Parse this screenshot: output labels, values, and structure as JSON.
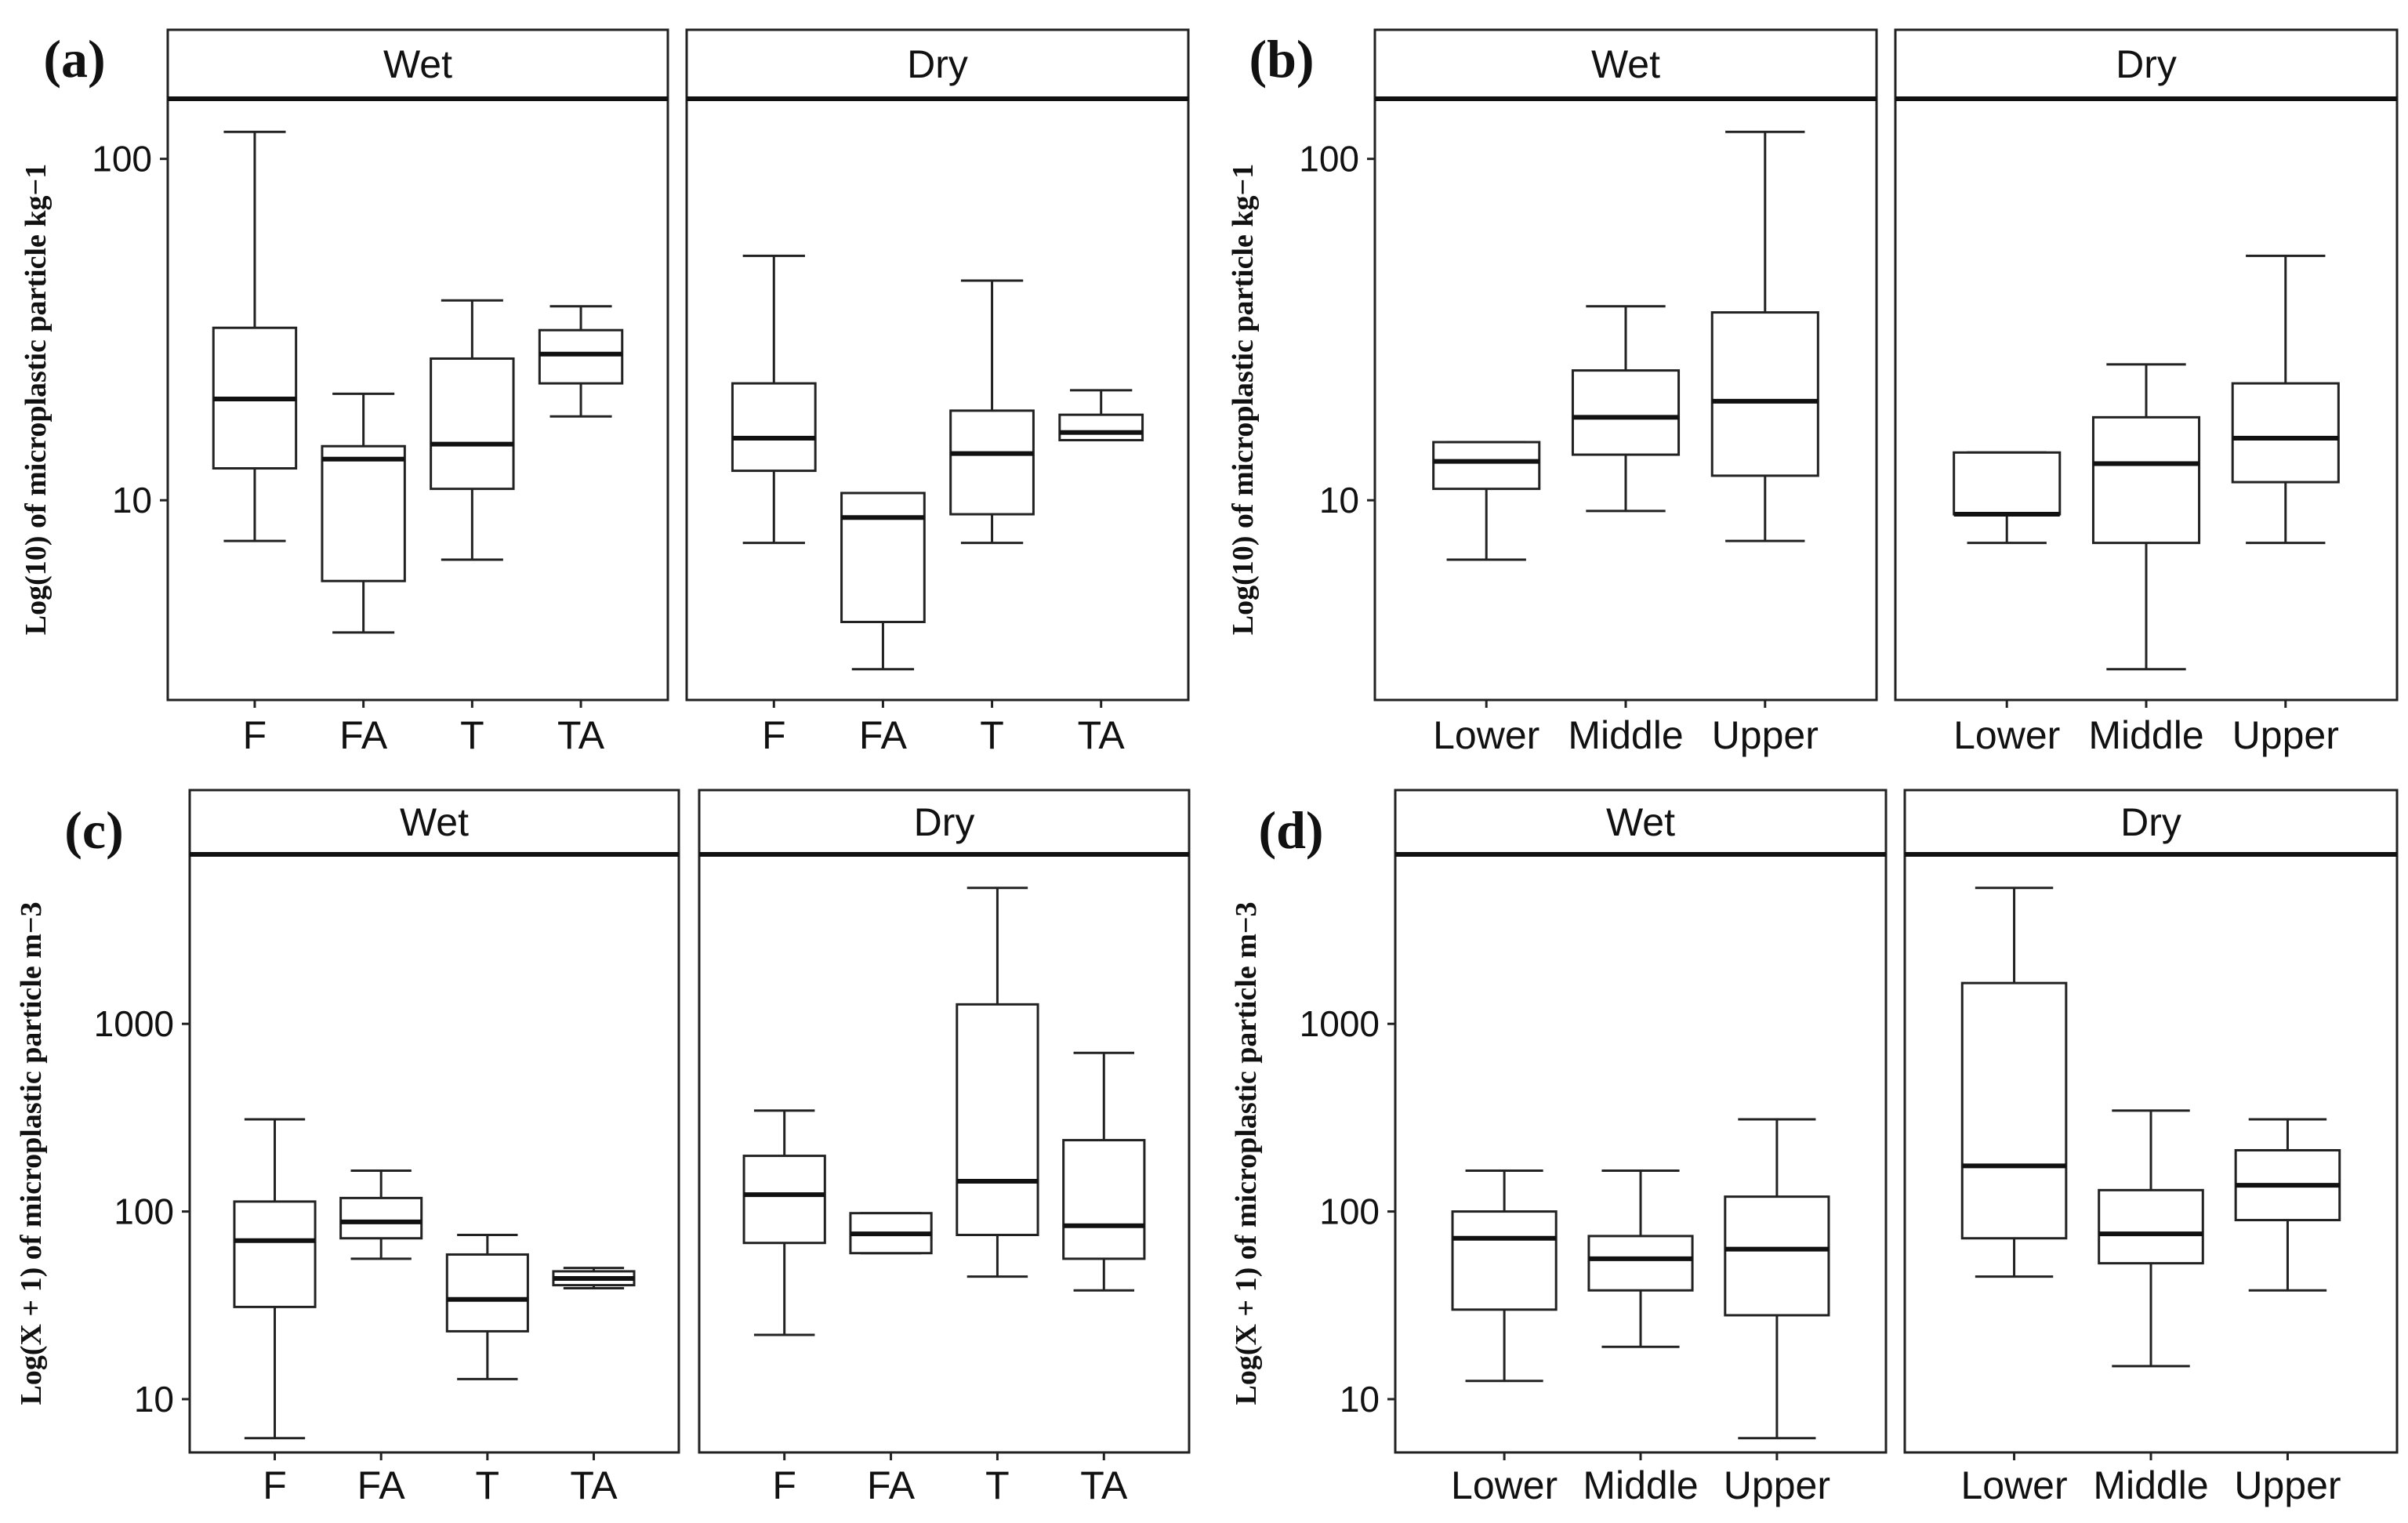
{
  "chart_data": [
    {
      "id": "a",
      "type": "box",
      "label": "(a)",
      "ylabel": "Log(10) of microplastic particle kg−1",
      "scale": "log10",
      "ylim": [
        2.6,
        150
      ],
      "yticks": [
        10,
        100
      ],
      "ytick_labels": [
        "10",
        "100"
      ],
      "facets": [
        {
          "strip": "Wet",
          "categories": [
            "F",
            "FA",
            "T",
            "TA"
          ],
          "boxes": [
            {
              "whisker_low": 7.6,
              "q1": 12.4,
              "median": 19.8,
              "q3": 32,
              "whisker_high": 120
            },
            {
              "whisker_low": 4.1,
              "q1": 5.8,
              "median": 13.2,
              "q3": 14.4,
              "whisker_high": 20.5
            },
            {
              "whisker_low": 6.7,
              "q1": 10.8,
              "median": 14.6,
              "q3": 26,
              "whisker_high": 38.5
            },
            {
              "whisker_low": 17.6,
              "q1": 22,
              "median": 26.8,
              "q3": 31.5,
              "whisker_high": 37
            }
          ]
        },
        {
          "strip": "Dry",
          "categories": [
            "F",
            "FA",
            "T",
            "TA"
          ],
          "boxes": [
            {
              "whisker_low": 7.5,
              "q1": 12.2,
              "median": 15.2,
              "q3": 22,
              "whisker_high": 52
            },
            {
              "whisker_low": 3.2,
              "q1": 4.4,
              "median": 8.9,
              "q3": 10.5,
              "whisker_high": 10.5
            },
            {
              "whisker_low": 7.5,
              "q1": 9.1,
              "median": 13.7,
              "q3": 18.3,
              "whisker_high": 44
            },
            {
              "whisker_low": 15,
              "q1": 15,
              "median": 15.8,
              "q3": 17.8,
              "whisker_high": 21
            }
          ]
        }
      ]
    },
    {
      "id": "b",
      "type": "box",
      "label": "(b)",
      "ylabel": "Log(10) of microplastic particle kg−1",
      "scale": "log10",
      "ylim": [
        2.6,
        150
      ],
      "yticks": [
        10,
        100
      ],
      "ytick_labels": [
        "10",
        "100"
      ],
      "facets": [
        {
          "strip": "Wet",
          "categories": [
            "Lower",
            "Middle",
            "Upper"
          ],
          "boxes": [
            {
              "whisker_low": 6.7,
              "q1": 10.8,
              "median": 13,
              "q3": 14.8,
              "whisker_high": 14.8
            },
            {
              "whisker_low": 9.3,
              "q1": 13.6,
              "median": 17.5,
              "q3": 24,
              "whisker_high": 37
            },
            {
              "whisker_low": 7.6,
              "q1": 11.8,
              "median": 19.5,
              "q3": 35.5,
              "whisker_high": 120
            }
          ]
        },
        {
          "strip": "Dry",
          "categories": [
            "Lower",
            "Middle",
            "Upper"
          ],
          "boxes": [
            {
              "whisker_low": 7.5,
              "q1": 9.1,
              "median": 9.1,
              "q3": 13.8,
              "whisker_high": 13.8
            },
            {
              "whisker_low": 3.2,
              "q1": 7.5,
              "median": 12.8,
              "q3": 17.5,
              "whisker_high": 25
            },
            {
              "whisker_low": 7.5,
              "q1": 11.3,
              "median": 15.2,
              "q3": 22,
              "whisker_high": 52
            }
          ]
        }
      ]
    },
    {
      "id": "c",
      "type": "box",
      "label": "(c)",
      "ylabel": "Log(X + 1) of microplastic particle m−3",
      "scale": "log10",
      "ylim": [
        5.2,
        8000
      ],
      "yticks": [
        10,
        100,
        1000
      ],
      "ytick_labels": [
        "10",
        "100",
        "1000"
      ],
      "facets": [
        {
          "strip": "Wet",
          "categories": [
            "F",
            "FA",
            "T",
            "TA"
          ],
          "boxes": [
            {
              "whisker_low": 6.2,
              "q1": 31,
              "median": 70,
              "q3": 113,
              "whisker_high": 310
            },
            {
              "whisker_low": 56,
              "q1": 72,
              "median": 88,
              "q3": 118,
              "whisker_high": 165
            },
            {
              "whisker_low": 12.8,
              "q1": 23,
              "median": 34,
              "q3": 59,
              "whisker_high": 75
            },
            {
              "whisker_low": 39,
              "q1": 40.5,
              "median": 44,
              "q3": 48,
              "whisker_high": 50
            }
          ]
        },
        {
          "strip": "Dry",
          "categories": [
            "F",
            "FA",
            "T",
            "TA"
          ],
          "boxes": [
            {
              "whisker_low": 22,
              "q1": 68,
              "median": 123,
              "q3": 198,
              "whisker_high": 345
            },
            {
              "whisker_low": 60,
              "q1": 60,
              "median": 76,
              "q3": 98,
              "whisker_high": 98
            },
            {
              "whisker_low": 45,
              "q1": 75,
              "median": 145,
              "q3": 1270,
              "whisker_high": 5300
            },
            {
              "whisker_low": 38,
              "q1": 56,
              "median": 84,
              "q3": 240,
              "whisker_high": 700
            }
          ]
        }
      ]
    },
    {
      "id": "d",
      "type": "box",
      "label": "(d)",
      "ylabel": "Log(X + 1) of microplastic particle m−3",
      "scale": "log10",
      "ylim": [
        5.2,
        8000
      ],
      "yticks": [
        10,
        100,
        1000
      ],
      "ytick_labels": [
        "10",
        "100",
        "1000"
      ],
      "facets": [
        {
          "strip": "Wet",
          "categories": [
            "Lower",
            "Middle",
            "Upper"
          ],
          "boxes": [
            {
              "whisker_low": 12.5,
              "q1": 30,
              "median": 72,
              "q3": 100,
              "whisker_high": 165
            },
            {
              "whisker_low": 19,
              "q1": 38,
              "median": 56,
              "q3": 74,
              "whisker_high": 165
            },
            {
              "whisker_low": 6.2,
              "q1": 28,
              "median": 63,
              "q3": 120,
              "whisker_high": 310
            }
          ]
        },
        {
          "strip": "Dry",
          "categories": [
            "Lower",
            "Middle",
            "Upper"
          ],
          "boxes": [
            {
              "whisker_low": 45,
              "q1": 72,
              "median": 175,
              "q3": 1650,
              "whisker_high": 5300
            },
            {
              "whisker_low": 15,
              "q1": 53,
              "median": 76,
              "q3": 130,
              "whisker_high": 345
            },
            {
              "whisker_low": 38,
              "q1": 90,
              "median": 138,
              "q3": 212,
              "whisker_high": 310
            }
          ]
        }
      ]
    }
  ]
}
